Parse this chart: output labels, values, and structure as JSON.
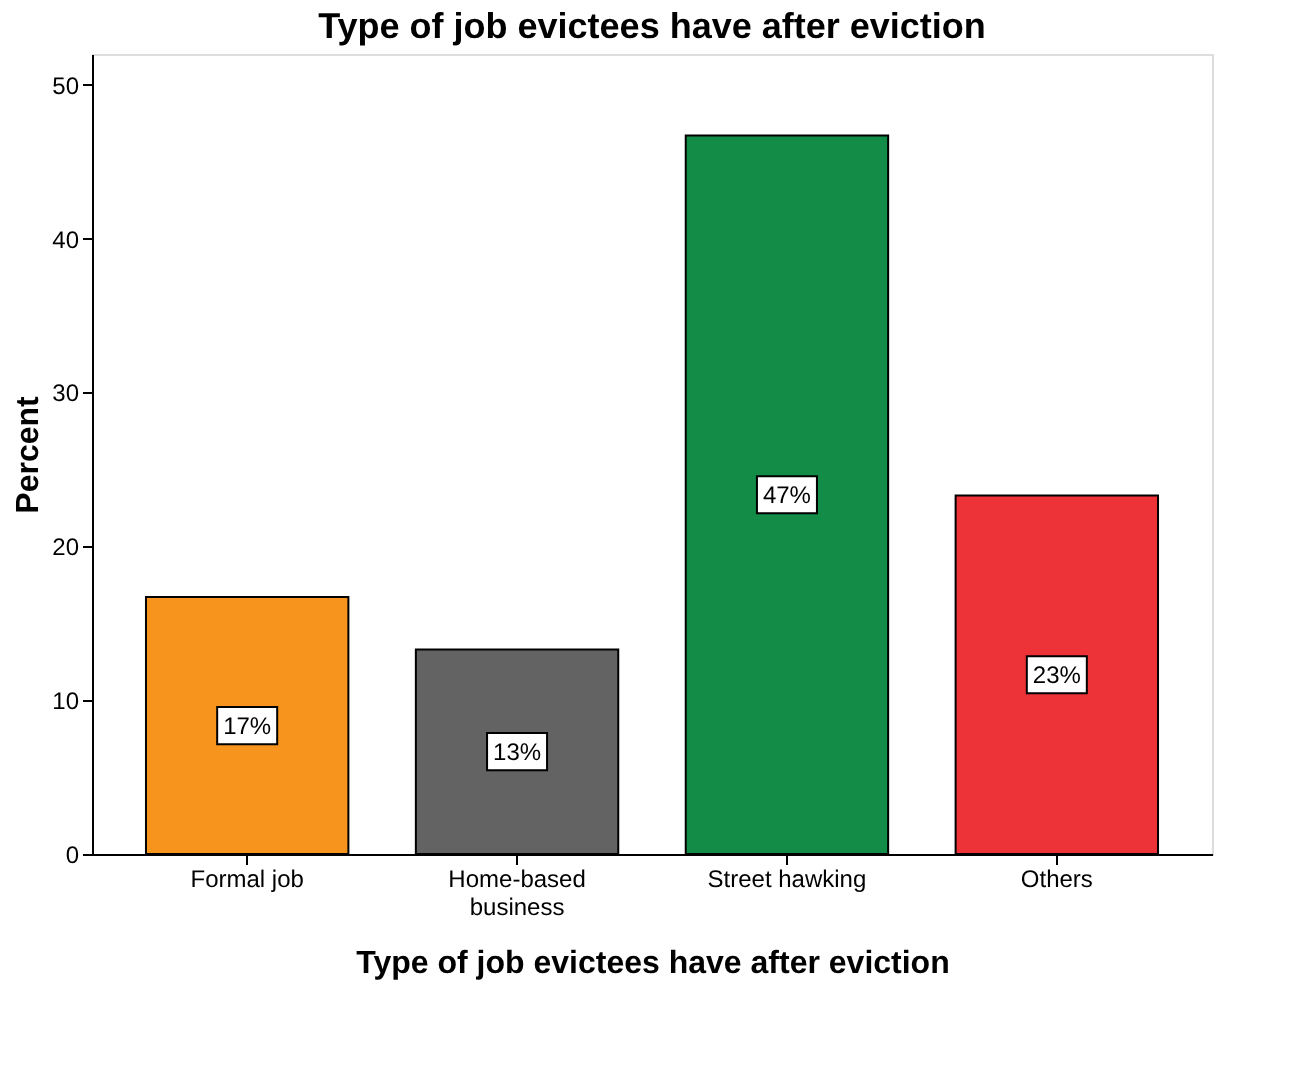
{
  "chart_data": {
    "type": "bar",
    "title": "Type of job evictees have after eviction",
    "xlabel": "Type of job evictees have after eviction",
    "ylabel": "Percent",
    "categories": [
      "Formal job",
      "Home-based\nbusiness",
      "Street hawking",
      "Others"
    ],
    "values": [
      16.7,
      13.3,
      46.7,
      23.3
    ],
    "colors": [
      "#f7941d",
      "#636363",
      "#128c47",
      "#ee3338"
    ],
    "value_labels": [
      "17%",
      "13%",
      "47%",
      "23%"
    ],
    "ylim": [
      0,
      52
    ],
    "yticks": [
      0,
      10,
      20,
      30,
      40,
      50
    ],
    "grid": false
  }
}
